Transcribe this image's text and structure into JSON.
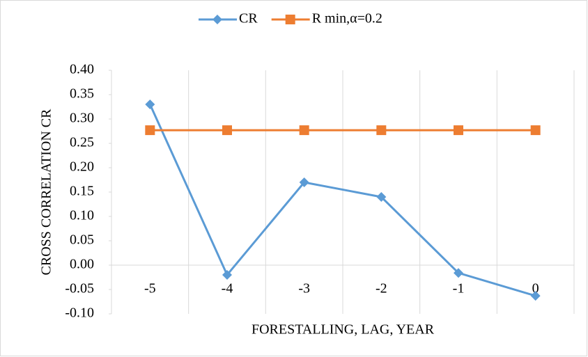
{
  "chart_data": {
    "type": "line",
    "categories": [
      "-5",
      "-4",
      "-3",
      "-2",
      "-1",
      "0"
    ],
    "series": [
      {
        "name": "CR",
        "color": "#5b9bd5",
        "marker": "diamond",
        "values": [
          0.33,
          -0.02,
          0.17,
          0.14,
          -0.016,
          -0.063
        ]
      },
      {
        "name": "R min,α=0.2",
        "color": "#ed7d31",
        "marker": "square",
        "values": [
          0.277,
          0.277,
          0.277,
          0.277,
          0.277,
          0.277
        ]
      }
    ],
    "y_label": "CROSS CORRELATION CR",
    "x_label": "FORESTALLING, LAG, YEAR",
    "ylim": [
      -0.1,
      0.4
    ],
    "yticks": [
      {
        "value": -0.1,
        "label": "-0.10"
      },
      {
        "value": -0.05,
        "label": "-0.05"
      },
      {
        "value": 0,
        "label": "0.00"
      },
      {
        "value": 0.05,
        "label": "0.05"
      },
      {
        "value": 0.1,
        "label": "0.10"
      },
      {
        "value": 0.15,
        "label": "0.15"
      },
      {
        "value": 0.2,
        "label": "0.20"
      },
      {
        "value": 0.25,
        "label": "0.25"
      },
      {
        "value": 0.3,
        "label": "0.30"
      },
      {
        "value": 0.35,
        "label": "0.35"
      },
      {
        "value": 0.4,
        "label": "0.40"
      }
    ],
    "legend": "top"
  }
}
